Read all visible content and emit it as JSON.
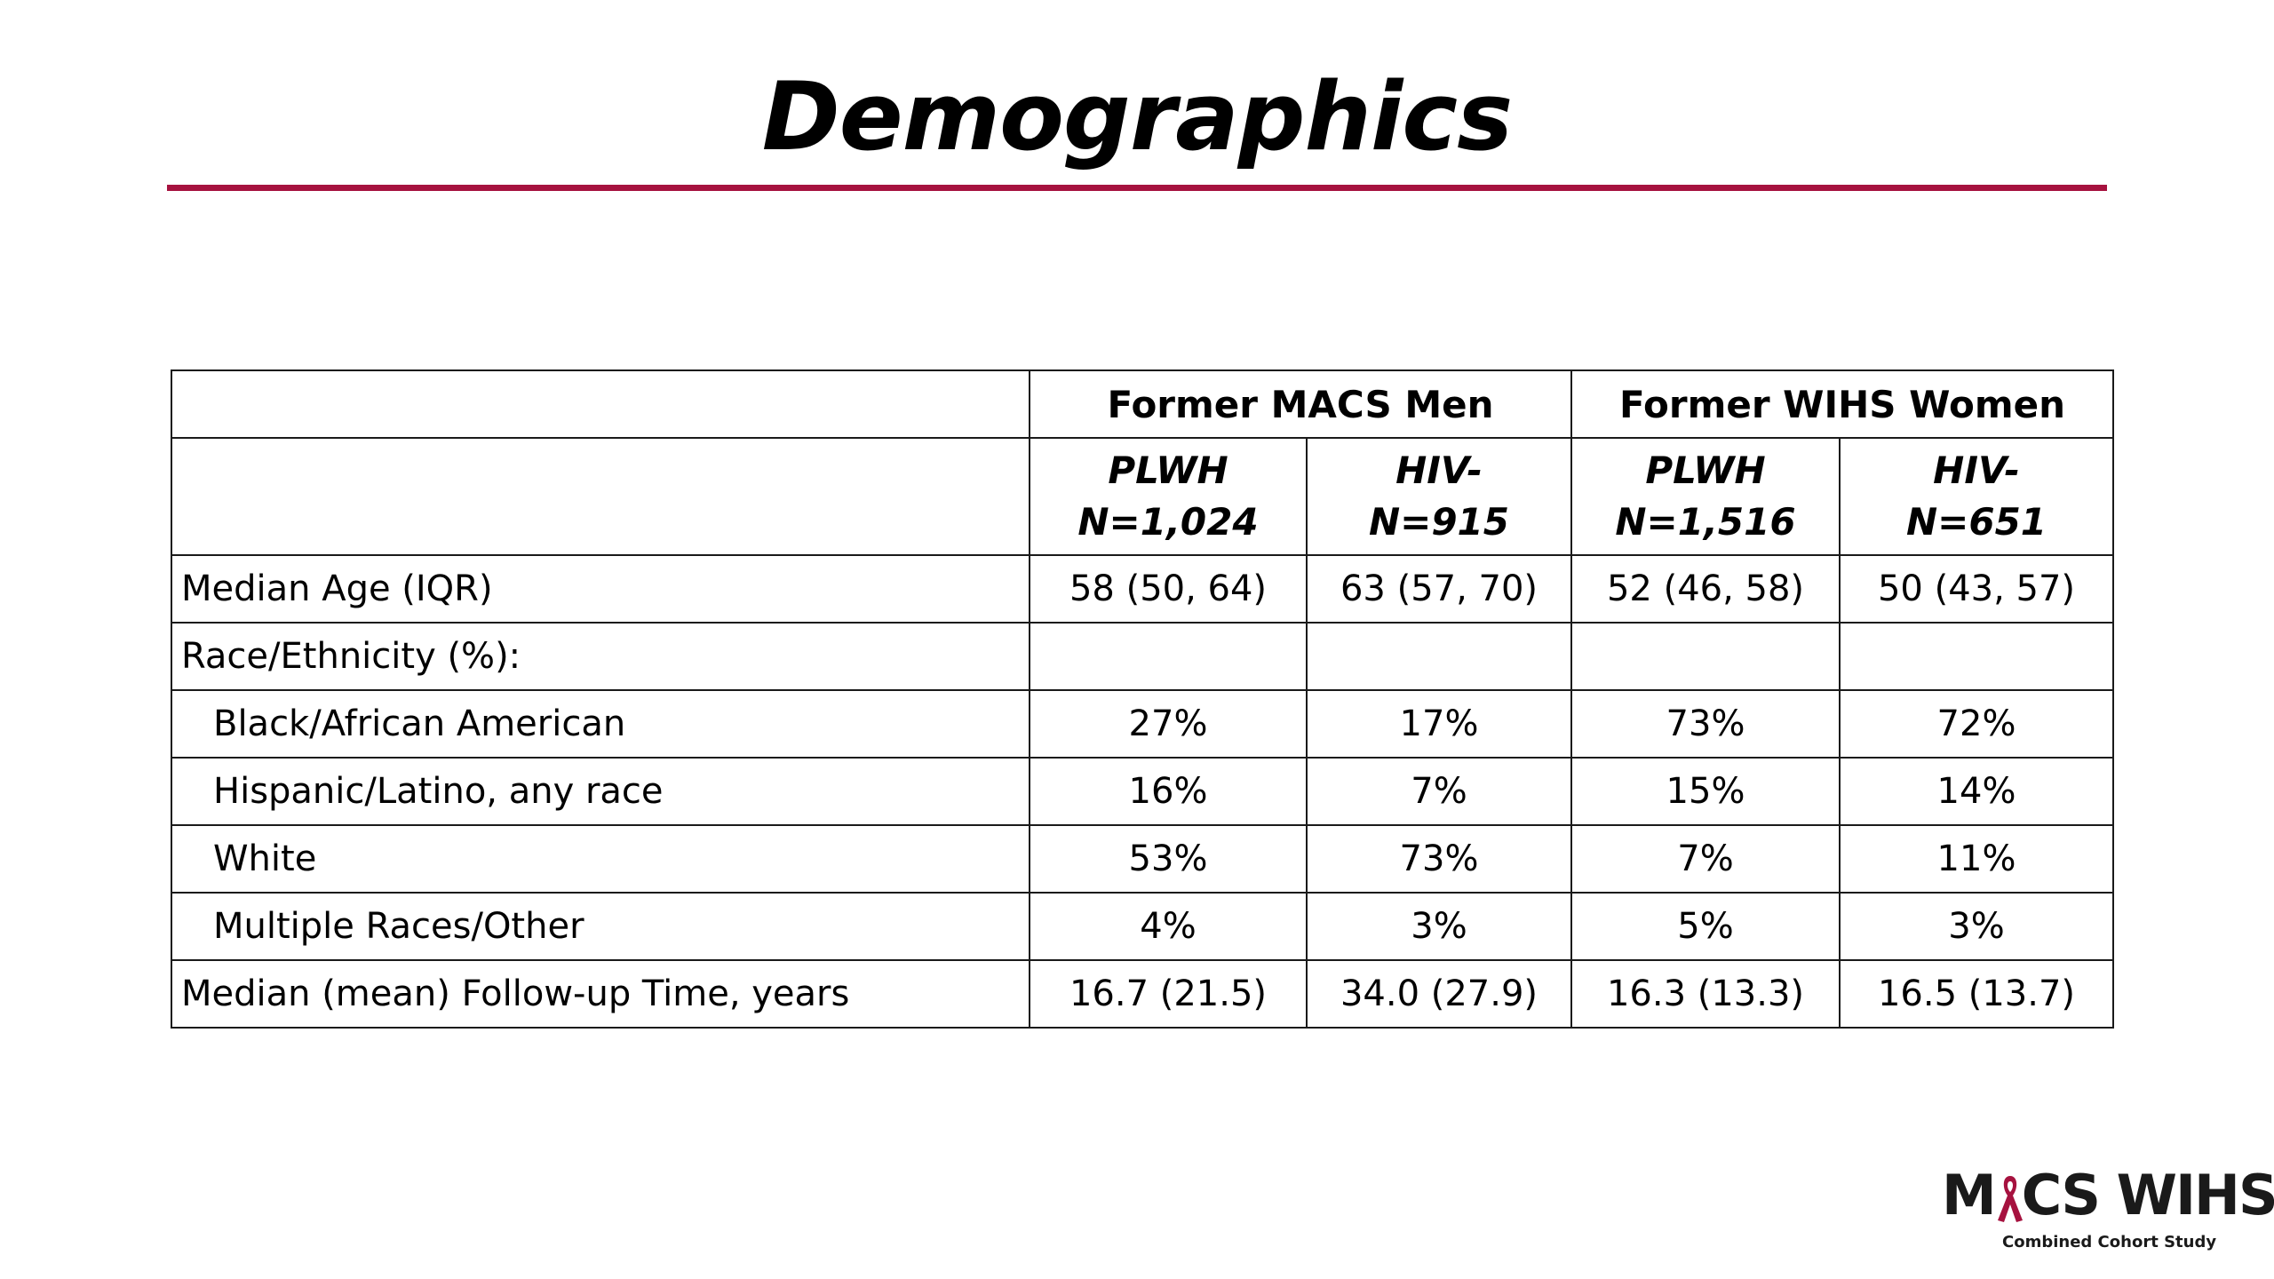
{
  "title": "Demographics",
  "colors": {
    "accent_rule": "#a6123f",
    "ribbon": "#a6123f",
    "border": "#1a1a1a"
  },
  "table": {
    "group_headers": [
      "Former MACS Men",
      "Former WIHS Women"
    ],
    "columns": [
      {
        "label": "PLWH",
        "n": "N=1,024"
      },
      {
        "label": "HIV-",
        "n": "N=915"
      },
      {
        "label": "PLWH",
        "n": "N=1,516"
      },
      {
        "label": "HIV-",
        "n": "N=651"
      }
    ],
    "rows": [
      {
        "label": "Median Age (IQR)",
        "values": [
          "58 (50, 64)",
          "63 (57, 70)",
          "52 (46, 58)",
          "50 (43, 57)"
        ]
      },
      {
        "label": "Race/Ethnicity (%):",
        "values": [
          "",
          "",
          "",
          ""
        ]
      },
      {
        "label": "Black/African American",
        "values": [
          "27%",
          "17%",
          "73%",
          "72%"
        ]
      },
      {
        "label": "Hispanic/Latino, any race",
        "values": [
          "16%",
          "7%",
          "15%",
          "14%"
        ]
      },
      {
        "label": "White",
        "values": [
          "53%",
          "73%",
          "7%",
          "11%"
        ]
      },
      {
        "label": "Multiple Races/Other",
        "values": [
          "4%",
          "3%",
          "5%",
          "3%"
        ]
      },
      {
        "label": "Median (mean) Follow-up Time, years",
        "values": [
          "16.7 (21.5)",
          "34.0 (27.9)",
          "16.3 (13.3)",
          "16.5 (13.7)"
        ]
      }
    ]
  },
  "logo": {
    "text_left": "M",
    "text_right": "CS WIHS",
    "subtitle": "Combined Cohort Study",
    "icon": "awareness-ribbon-icon"
  }
}
